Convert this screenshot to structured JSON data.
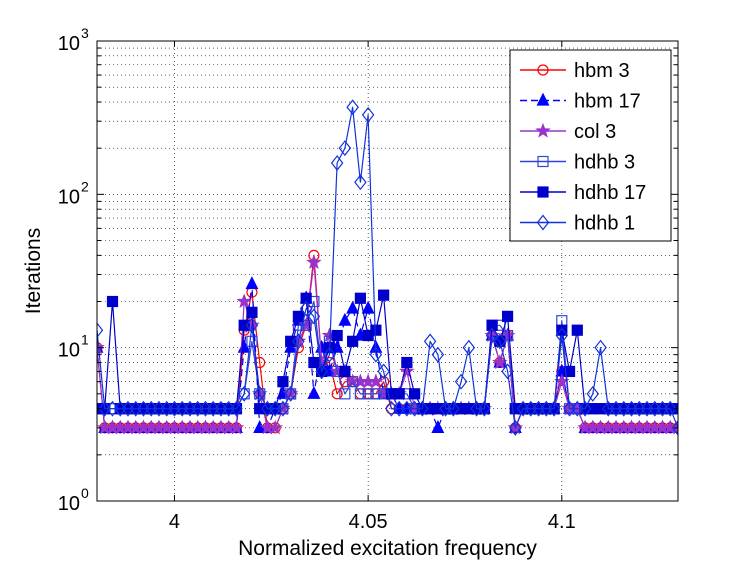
{
  "chart_data": {
    "type": "line",
    "title": "",
    "xlabel": "Normalized excitation frequency",
    "ylabel": "Iterations",
    "xlim": [
      3.98,
      4.13
    ],
    "ylim": [
      1,
      1000
    ],
    "yscale": "log",
    "grid": "major and minor dotted",
    "legend_position": "top-right",
    "x_ticks": [
      {
        "value": 4.0,
        "label": "4"
      },
      {
        "value": 4.05,
        "label": "4.05"
      },
      {
        "value": 4.1,
        "label": "4.1"
      }
    ],
    "y_ticks": [
      {
        "value": 1,
        "base": "10",
        "exp": "0"
      },
      {
        "value": 10,
        "base": "10",
        "exp": "1"
      },
      {
        "value": 100,
        "base": "10",
        "exp": "2"
      },
      {
        "value": 1000,
        "base": "10",
        "exp": "3"
      }
    ],
    "series": [
      {
        "name": "hbm 3",
        "color": "#ff0000",
        "marker": "circle-open",
        "line": "solid",
        "x": [
          3.98,
          3.982,
          3.984,
          3.986,
          3.988,
          3.99,
          3.992,
          3.994,
          3.996,
          3.998,
          4.0,
          4.002,
          4.004,
          4.006,
          4.008,
          4.01,
          4.012,
          4.014,
          4.016,
          4.018,
          4.02,
          4.022,
          4.024,
          4.026,
          4.028,
          4.03,
          4.032,
          4.034,
          4.036,
          4.038,
          4.04,
          4.042,
          4.044,
          4.046,
          4.048,
          4.05,
          4.052,
          4.054,
          4.056,
          4.058,
          4.06,
          4.062,
          4.064,
          4.066,
          4.068,
          4.07,
          4.072,
          4.074,
          4.076,
          4.078,
          4.08,
          4.082,
          4.084,
          4.086,
          4.088,
          4.09,
          4.092,
          4.094,
          4.096,
          4.098,
          4.1,
          4.102,
          4.104,
          4.106,
          4.108,
          4.11,
          4.112,
          4.114,
          4.116,
          4.118,
          4.12,
          4.122,
          4.124,
          4.126,
          4.128,
          4.13
        ],
        "values": [
          10,
          3,
          3,
          3,
          3,
          3,
          3,
          3,
          3,
          3,
          3,
          3,
          3,
          3,
          3,
          3,
          3,
          3,
          3,
          13,
          23,
          8,
          3,
          3,
          4,
          5,
          10,
          14,
          40,
          8,
          8,
          5,
          6,
          6,
          5,
          5,
          5,
          6,
          4,
          4,
          4,
          4,
          4,
          4,
          4,
          4,
          4,
          4,
          4,
          4,
          4,
          12,
          8,
          12,
          3,
          4,
          4,
          4,
          4,
          4,
          7,
          4,
          4,
          3,
          3,
          3,
          3,
          3,
          3,
          3,
          3,
          3,
          3,
          3,
          3,
          3
        ]
      },
      {
        "name": "hbm 17",
        "color": "#0000ff",
        "marker": "triangle-filled",
        "line": "dashed",
        "x": [
          3.98,
          3.982,
          3.984,
          3.986,
          3.988,
          3.99,
          3.992,
          3.994,
          3.996,
          3.998,
          4.0,
          4.002,
          4.004,
          4.006,
          4.008,
          4.01,
          4.012,
          4.014,
          4.016,
          4.018,
          4.02,
          4.022,
          4.024,
          4.026,
          4.028,
          4.03,
          4.032,
          4.034,
          4.036,
          4.038,
          4.04,
          4.042,
          4.044,
          4.046,
          4.048,
          4.05,
          4.052,
          4.054,
          4.056,
          4.058,
          4.06,
          4.062,
          4.064,
          4.066,
          4.068,
          4.07,
          4.072,
          4.074,
          4.076,
          4.078,
          4.08,
          4.082,
          4.084,
          4.086,
          4.088,
          4.09,
          4.092,
          4.094,
          4.096,
          4.098,
          4.1,
          4.102,
          4.104,
          4.106,
          4.108,
          4.11,
          4.112,
          4.114,
          4.116,
          4.118,
          4.12,
          4.122,
          4.124,
          4.126,
          4.128,
          4.13
        ],
        "values": [
          10,
          3,
          3,
          3,
          3,
          3,
          3,
          3,
          3,
          3,
          3,
          3,
          3,
          3,
          3,
          3,
          3,
          3,
          3,
          10,
          26,
          3,
          3,
          4,
          5,
          10,
          15,
          21,
          5,
          10,
          7,
          10,
          15,
          18,
          12,
          18,
          10,
          5,
          5,
          4,
          4,
          4,
          4,
          4,
          3,
          4,
          4,
          4,
          4,
          4,
          4,
          12,
          8,
          12,
          3,
          4,
          4,
          4,
          4,
          4,
          7,
          4,
          4,
          3,
          3,
          3,
          3,
          3,
          3,
          3,
          3,
          3,
          3,
          3,
          3,
          3
        ]
      },
      {
        "name": "col 3",
        "color": "#9933cc",
        "marker": "star-filled",
        "line": "solid",
        "x": [
          3.98,
          3.982,
          3.984,
          3.986,
          3.988,
          3.99,
          3.992,
          3.994,
          3.996,
          3.998,
          4.0,
          4.002,
          4.004,
          4.006,
          4.008,
          4.01,
          4.012,
          4.014,
          4.016,
          4.018,
          4.02,
          4.022,
          4.024,
          4.026,
          4.028,
          4.03,
          4.032,
          4.034,
          4.036,
          4.038,
          4.04,
          4.042,
          4.044,
          4.046,
          4.048,
          4.05,
          4.052,
          4.054,
          4.056,
          4.058,
          4.06,
          4.062,
          4.064,
          4.066,
          4.068,
          4.07,
          4.072,
          4.074,
          4.076,
          4.078,
          4.08,
          4.082,
          4.084,
          4.086,
          4.088,
          4.09,
          4.092,
          4.094,
          4.096,
          4.098,
          4.1,
          4.102,
          4.104,
          4.106,
          4.108,
          4.11,
          4.112,
          4.114,
          4.116,
          4.118,
          4.12,
          4.122,
          4.124,
          4.126,
          4.128,
          4.13
        ],
        "values": [
          10,
          3,
          3,
          3,
          3,
          3,
          3,
          3,
          3,
          3,
          3,
          3,
          3,
          3,
          3,
          3,
          3,
          3,
          3,
          20,
          14,
          5,
          3,
          3,
          4,
          5,
          11,
          14,
          36,
          8,
          12,
          7,
          7,
          6,
          6,
          6,
          6,
          5,
          5,
          5,
          7,
          4,
          4,
          4,
          4,
          4,
          4,
          4,
          4,
          4,
          4,
          12,
          8,
          12,
          3,
          4,
          4,
          4,
          4,
          4,
          6,
          4,
          4,
          3,
          3,
          3,
          3,
          3,
          3,
          3,
          3,
          3,
          3,
          3,
          3,
          3
        ]
      },
      {
        "name": "hdhb 3",
        "color": "#3344dd",
        "marker": "square-open",
        "line": "solid",
        "x": [
          3.98,
          3.982,
          3.984,
          3.986,
          3.988,
          3.99,
          3.992,
          3.994,
          3.996,
          3.998,
          4.0,
          4.002,
          4.004,
          4.006,
          4.008,
          4.01,
          4.012,
          4.014,
          4.016,
          4.018,
          4.02,
          4.022,
          4.024,
          4.026,
          4.028,
          4.03,
          4.032,
          4.034,
          4.036,
          4.038,
          4.04,
          4.042,
          4.044,
          4.046,
          4.048,
          4.05,
          4.052,
          4.054,
          4.056,
          4.058,
          4.06,
          4.062,
          4.064,
          4.066,
          4.068,
          4.07,
          4.072,
          4.074,
          4.076,
          4.078,
          4.08,
          4.082,
          4.084,
          4.086,
          4.088,
          4.09,
          4.092,
          4.094,
          4.096,
          4.098,
          4.1,
          4.102,
          4.104,
          4.106,
          4.108,
          4.11,
          4.112,
          4.114,
          4.116,
          4.118,
          4.12,
          4.122,
          4.124,
          4.126,
          4.128,
          4.13
        ],
        "values": [
          4,
          4,
          4,
          4,
          4,
          4,
          4,
          4,
          4,
          4,
          4,
          4,
          4,
          4,
          4,
          4,
          4,
          4,
          4,
          5,
          11,
          5,
          4,
          4,
          4,
          5,
          14,
          14,
          20,
          7,
          11,
          7,
          5,
          6,
          5,
          5,
          5,
          5,
          5,
          5,
          5,
          4,
          4,
          4,
          4,
          4,
          4,
          4,
          4,
          4,
          4,
          14,
          14,
          12,
          4,
          4,
          4,
          4,
          4,
          4,
          15,
          4,
          4,
          4,
          4,
          4,
          4,
          4,
          4,
          4,
          4,
          4,
          4,
          4,
          4,
          4
        ]
      },
      {
        "name": "hdhb 17",
        "color": "#0000cc",
        "marker": "square-filled",
        "line": "solid",
        "x": [
          3.98,
          3.982,
          3.984,
          3.986,
          3.988,
          3.99,
          3.992,
          3.994,
          3.996,
          3.998,
          4.0,
          4.002,
          4.004,
          4.006,
          4.008,
          4.01,
          4.012,
          4.014,
          4.016,
          4.018,
          4.02,
          4.022,
          4.024,
          4.026,
          4.028,
          4.03,
          4.032,
          4.034,
          4.036,
          4.038,
          4.04,
          4.042,
          4.044,
          4.046,
          4.048,
          4.05,
          4.052,
          4.054,
          4.056,
          4.058,
          4.06,
          4.062,
          4.064,
          4.066,
          4.068,
          4.07,
          4.072,
          4.074,
          4.076,
          4.078,
          4.08,
          4.082,
          4.084,
          4.086,
          4.088,
          4.09,
          4.092,
          4.094,
          4.096,
          4.098,
          4.1,
          4.102,
          4.104,
          4.106,
          4.108,
          4.11,
          4.112,
          4.114,
          4.116,
          4.118,
          4.12,
          4.122,
          4.124,
          4.126,
          4.128,
          4.13
        ],
        "values": [
          4,
          4,
          20,
          4,
          4,
          4,
          4,
          4,
          4,
          4,
          4,
          4,
          4,
          4,
          4,
          4,
          4,
          4,
          4,
          14,
          17,
          4,
          4,
          4,
          6,
          11,
          16,
          21,
          8,
          7,
          10,
          12,
          7,
          11,
          21,
          12,
          13,
          22,
          5,
          5,
          8,
          5,
          4,
          4,
          4,
          4,
          4,
          4,
          4,
          4,
          4,
          14,
          11,
          16,
          4,
          4,
          4,
          4,
          4,
          4,
          13,
          7,
          13,
          4,
          4,
          4,
          4,
          4,
          4,
          4,
          4,
          4,
          4,
          4,
          4,
          4
        ]
      },
      {
        "name": "hdhb 1",
        "color": "#1133dd",
        "marker": "diamond-open",
        "line": "solid",
        "x": [
          3.98,
          3.982,
          3.984,
          3.986,
          3.988,
          3.99,
          3.992,
          3.994,
          3.996,
          3.998,
          4.0,
          4.002,
          4.004,
          4.006,
          4.008,
          4.01,
          4.012,
          4.014,
          4.016,
          4.018,
          4.02,
          4.022,
          4.024,
          4.026,
          4.028,
          4.03,
          4.032,
          4.034,
          4.036,
          4.038,
          4.04,
          4.042,
          4.044,
          4.046,
          4.048,
          4.05,
          4.052,
          4.054,
          4.056,
          4.058,
          4.06,
          4.062,
          4.064,
          4.066,
          4.068,
          4.07,
          4.072,
          4.074,
          4.076,
          4.078,
          4.08,
          4.082,
          4.084,
          4.086,
          4.088,
          4.09,
          4.092,
          4.094,
          4.096,
          4.098,
          4.1,
          4.102,
          4.104,
          4.106,
          4.108,
          4.11,
          4.112,
          4.114,
          4.116,
          4.118,
          4.12,
          4.122,
          4.124,
          4.126,
          4.128,
          4.13
        ],
        "values": [
          13,
          4,
          4,
          4,
          4,
          4,
          4,
          4,
          4,
          4,
          4,
          4,
          4,
          4,
          4,
          4,
          4,
          4,
          4,
          5,
          14,
          5,
          4,
          4,
          4,
          5,
          11,
          18,
          16,
          7,
          9,
          160,
          200,
          370,
          120,
          330,
          9,
          7,
          4,
          4,
          4,
          4,
          4,
          11,
          9,
          4,
          4,
          6,
          10,
          4,
          4,
          12,
          11,
          7,
          3,
          4,
          4,
          4,
          4,
          4,
          12,
          4,
          4,
          4,
          5,
          10,
          4,
          4,
          4,
          4,
          4,
          4,
          4,
          4,
          4,
          3
        ]
      }
    ]
  }
}
